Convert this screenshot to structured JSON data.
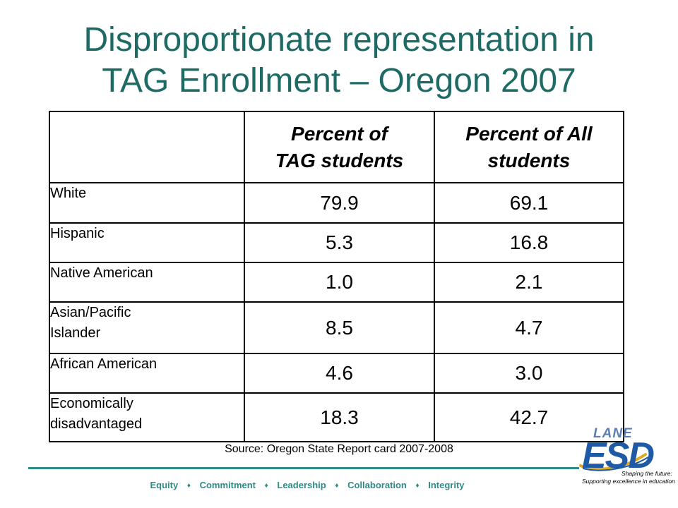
{
  "slide": {
    "title_line1": "Disproportionate representation in",
    "title_line2": "TAG Enrollment – Oregon 2007"
  },
  "table": {
    "columns": [
      "",
      "Percent of TAG students",
      "Percent of All students"
    ],
    "column_lines": [
      [
        "Percent of",
        "TAG students"
      ],
      [
        "Percent of All",
        "students"
      ]
    ],
    "rows": [
      {
        "label": "White",
        "tag": "79.9",
        "all": "69.1"
      },
      {
        "label": "Hispanic",
        "tag": "5.3",
        "all": "16.8"
      },
      {
        "label": "Native American",
        "tag": "1.0",
        "all": "2.1"
      },
      {
        "label": "Asian/Pacific Islander",
        "label_lines": [
          "Asian/Pacific",
          "Islander"
        ],
        "tag": "8.5",
        "all": "4.7"
      },
      {
        "label": "African American",
        "tag": "4.6",
        "all": "3.0"
      },
      {
        "label": "Economically disadvantaged",
        "label_lines": [
          "Economically",
          "disadvantaged"
        ],
        "tag": "18.3",
        "all": "42.7"
      }
    ]
  },
  "source": "Source: Oregon State Report card 2007-2008",
  "footer": {
    "values": [
      "Equity",
      "Commitment",
      "Leadership",
      "Collaboration",
      "Integrity"
    ],
    "separator": "♦"
  },
  "logo": {
    "lane": "LANE",
    "esd": "ESD",
    "tagline1": "Shaping the future:",
    "tagline2": "Supporting excellence in education"
  },
  "colors": {
    "title": "#1e6a64",
    "accent": "#2c8c86",
    "logo_blue": "#1f5aa6",
    "logo_gold": "#e1a91e"
  }
}
